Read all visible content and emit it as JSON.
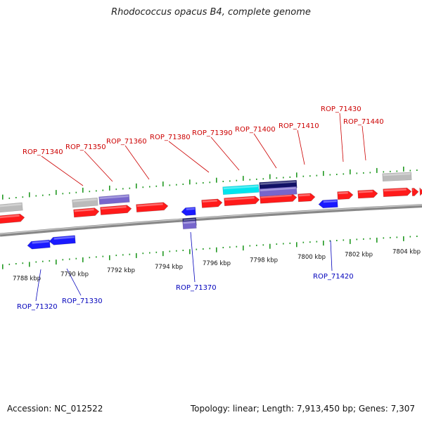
{
  "title": "Rhodococcus opacus B4, complete genome",
  "footer": {
    "accession": "Accession: NC_012522",
    "stats": "Topology: linear; Length: 7,913,450 bp; Genes: 7,307"
  },
  "colors": {
    "forward_label": "#cc0000",
    "reverse_label": "#0000bb",
    "forward_gene": "#ff1a1a",
    "reverse_gene": "#1a1aff",
    "pseudo_gene": "#bbbbbb",
    "highlight_cyan": "#00e5ee",
    "highlight_purple": "#7766cc",
    "highlight_navy": "#111166",
    "axis": "#888888",
    "tick": "#229922",
    "kbp_text": "#111111"
  },
  "kbp_ticks": [
    "7788 kbp",
    "7790 kbp",
    "7792 kbp",
    "7794 kbp",
    "7796 kbp",
    "7798 kbp",
    "7800 kbp",
    "7802 kbp",
    "7804 kbp"
  ],
  "forward_labels": [
    "ROP_71340",
    "ROP_71350",
    "ROP_71360",
    "ROP_71380",
    "ROP_71390",
    "ROP_71400",
    "ROP_71410",
    "ROP_71430",
    "ROP_71440"
  ],
  "reverse_labels": [
    "ROP_71320",
    "ROP_71330",
    "ROP_71370",
    "ROP_71420"
  ]
}
